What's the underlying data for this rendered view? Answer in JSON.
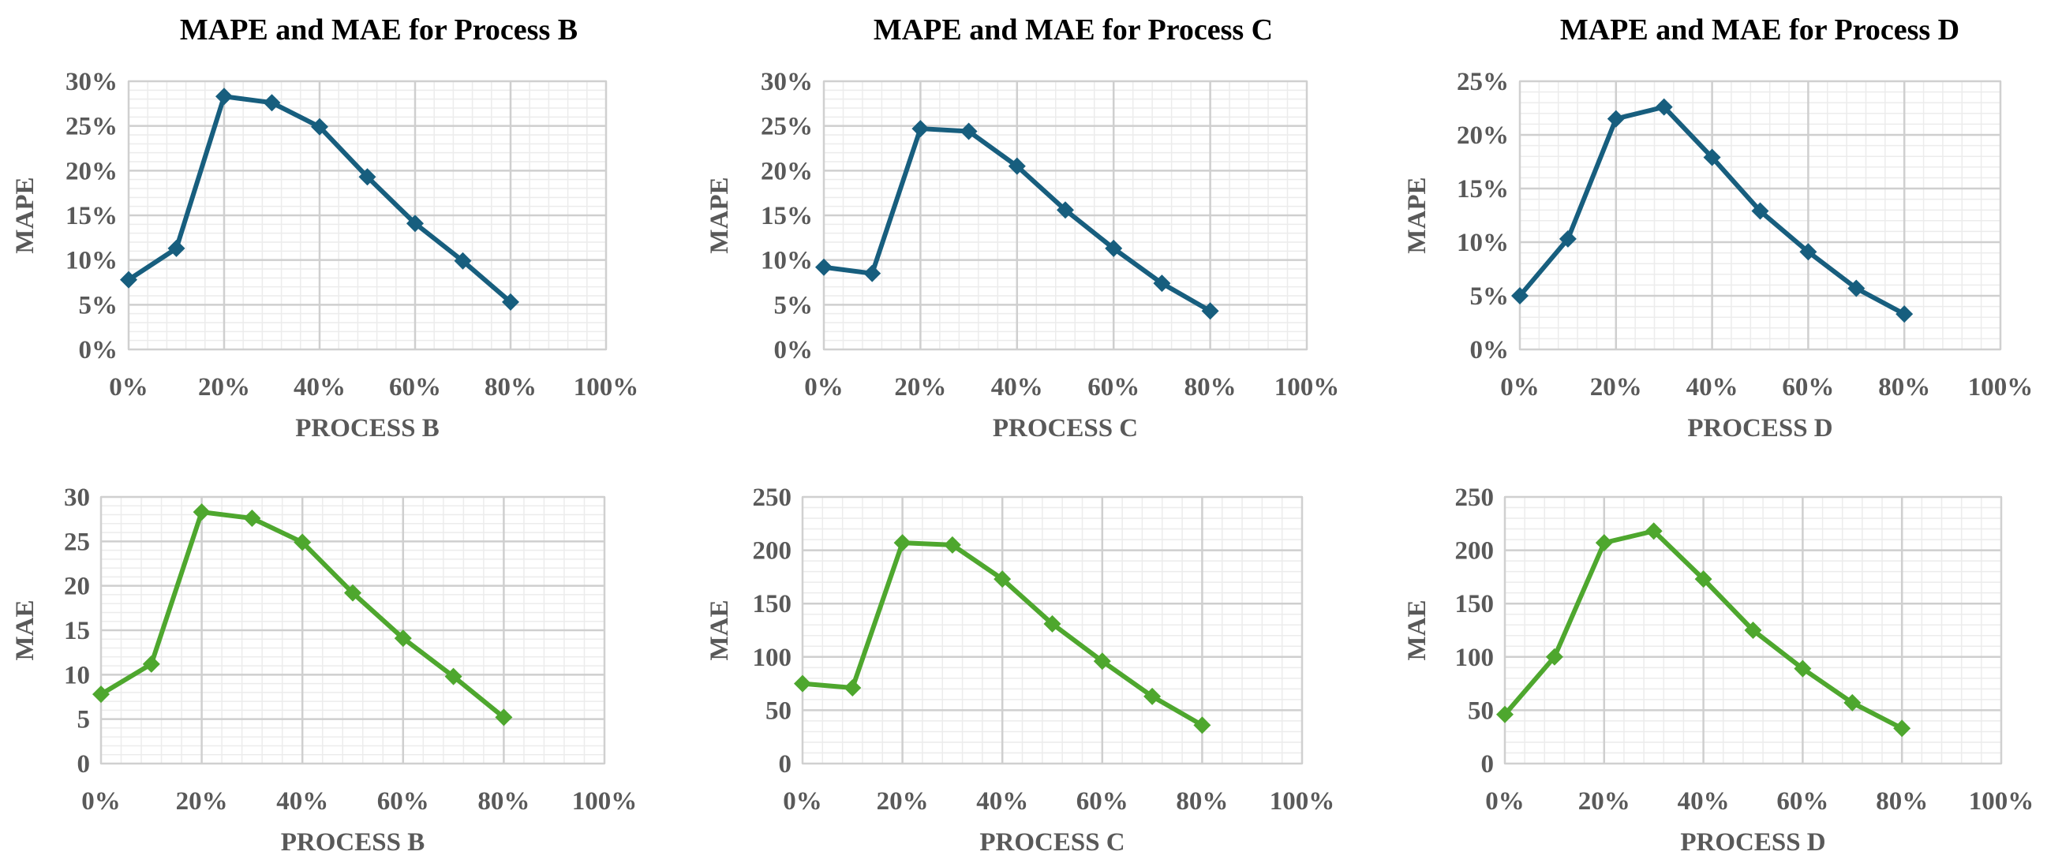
{
  "chart_data": [
    {
      "type": "line",
      "title": "MAPE and MAE for Process B",
      "xlabel": "PROCESS B",
      "ylabel": "MAPE",
      "x": [
        0,
        10,
        20,
        30,
        40,
        50,
        60,
        70,
        80
      ],
      "series": [
        {
          "name": "MAPE",
          "values": [
            7.8,
            11.3,
            28.3,
            27.6,
            24.9,
            19.3,
            14.1,
            9.9,
            5.3
          ]
        }
      ],
      "xlim": [
        0,
        100
      ],
      "ylim": [
        0,
        30
      ],
      "xticks": [
        "0%",
        "20%",
        "40%",
        "60%",
        "80%",
        "100%"
      ],
      "yticks": [
        "0%",
        "5%",
        "10%",
        "15%",
        "20%",
        "25%",
        "30%"
      ],
      "color": "#175e7e",
      "grid": true
    },
    {
      "type": "line",
      "title": "MAPE and MAE for Process C",
      "xlabel": "PROCESS C",
      "ylabel": "MAPE",
      "x": [
        0,
        10,
        20,
        30,
        40,
        50,
        60,
        70,
        80
      ],
      "series": [
        {
          "name": "MAPE",
          "values": [
            9.2,
            8.5,
            24.7,
            24.4,
            20.5,
            15.6,
            11.3,
            7.4,
            4.3
          ]
        }
      ],
      "xlim": [
        0,
        100
      ],
      "ylim": [
        0,
        30
      ],
      "xticks": [
        "0%",
        "20%",
        "40%",
        "60%",
        "80%",
        "100%"
      ],
      "yticks": [
        "0%",
        "5%",
        "10%",
        "15%",
        "20%",
        "25%",
        "30%"
      ],
      "color": "#175e7e",
      "grid": true
    },
    {
      "type": "line",
      "title": "MAPE and MAE for Process D",
      "xlabel": "PROCESS D",
      "ylabel": "MAPE",
      "x": [
        0,
        10,
        20,
        30,
        40,
        50,
        60,
        70,
        80
      ],
      "series": [
        {
          "name": "MAPE",
          "values": [
            5.0,
            10.3,
            21.5,
            22.6,
            17.9,
            12.9,
            9.1,
            5.7,
            3.3
          ]
        }
      ],
      "xlim": [
        0,
        100
      ],
      "ylim": [
        0,
        25
      ],
      "xticks": [
        "0%",
        "20%",
        "40%",
        "60%",
        "80%",
        "100%"
      ],
      "yticks": [
        "0%",
        "5%",
        "10%",
        "15%",
        "20%",
        "25%"
      ],
      "color": "#175e7e",
      "grid": true
    },
    {
      "type": "line",
      "title": "",
      "xlabel": "PROCESS B",
      "ylabel": "MAE",
      "x": [
        0,
        10,
        20,
        30,
        40,
        50,
        60,
        70,
        80
      ],
      "series": [
        {
          "name": "MAE",
          "values": [
            7.8,
            11.2,
            28.3,
            27.6,
            24.9,
            19.2,
            14.1,
            9.8,
            5.2
          ]
        }
      ],
      "xlim": [
        0,
        100
      ],
      "ylim": [
        0,
        30
      ],
      "xticks": [
        "0%",
        "20%",
        "40%",
        "60%",
        "80%",
        "100%"
      ],
      "yticks": [
        "0",
        "5",
        "10",
        "15",
        "20",
        "25",
        "30"
      ],
      "color": "#4ea72e",
      "grid": true
    },
    {
      "type": "line",
      "title": "",
      "xlabel": "PROCESS C",
      "ylabel": "MAE",
      "x": [
        0,
        10,
        20,
        30,
        40,
        50,
        60,
        70,
        80
      ],
      "series": [
        {
          "name": "MAE",
          "values": [
            75,
            71,
            207,
            205,
            173,
            131,
            96,
            63,
            36
          ]
        }
      ],
      "xlim": [
        0,
        100
      ],
      "ylim": [
        0,
        250
      ],
      "xticks": [
        "0%",
        "20%",
        "40%",
        "60%",
        "80%",
        "100%"
      ],
      "yticks": [
        "0",
        "50",
        "100",
        "150",
        "200",
        "250"
      ],
      "color": "#4ea72e",
      "grid": true
    },
    {
      "type": "line",
      "title": "",
      "xlabel": "PROCESS D",
      "ylabel": "MAE",
      "x": [
        0,
        10,
        20,
        30,
        40,
        50,
        60,
        70,
        80
      ],
      "series": [
        {
          "name": "MAE",
          "values": [
            46,
            100,
            207,
            218,
            173,
            125,
            89,
            57,
            33
          ]
        }
      ],
      "xlim": [
        0,
        100
      ],
      "ylim": [
        0,
        250
      ],
      "xticks": [
        "0%",
        "20%",
        "40%",
        "60%",
        "80%",
        "100%"
      ],
      "yticks": [
        "0",
        "50",
        "100",
        "150",
        "200",
        "250"
      ],
      "color": "#4ea72e",
      "grid": true
    }
  ]
}
